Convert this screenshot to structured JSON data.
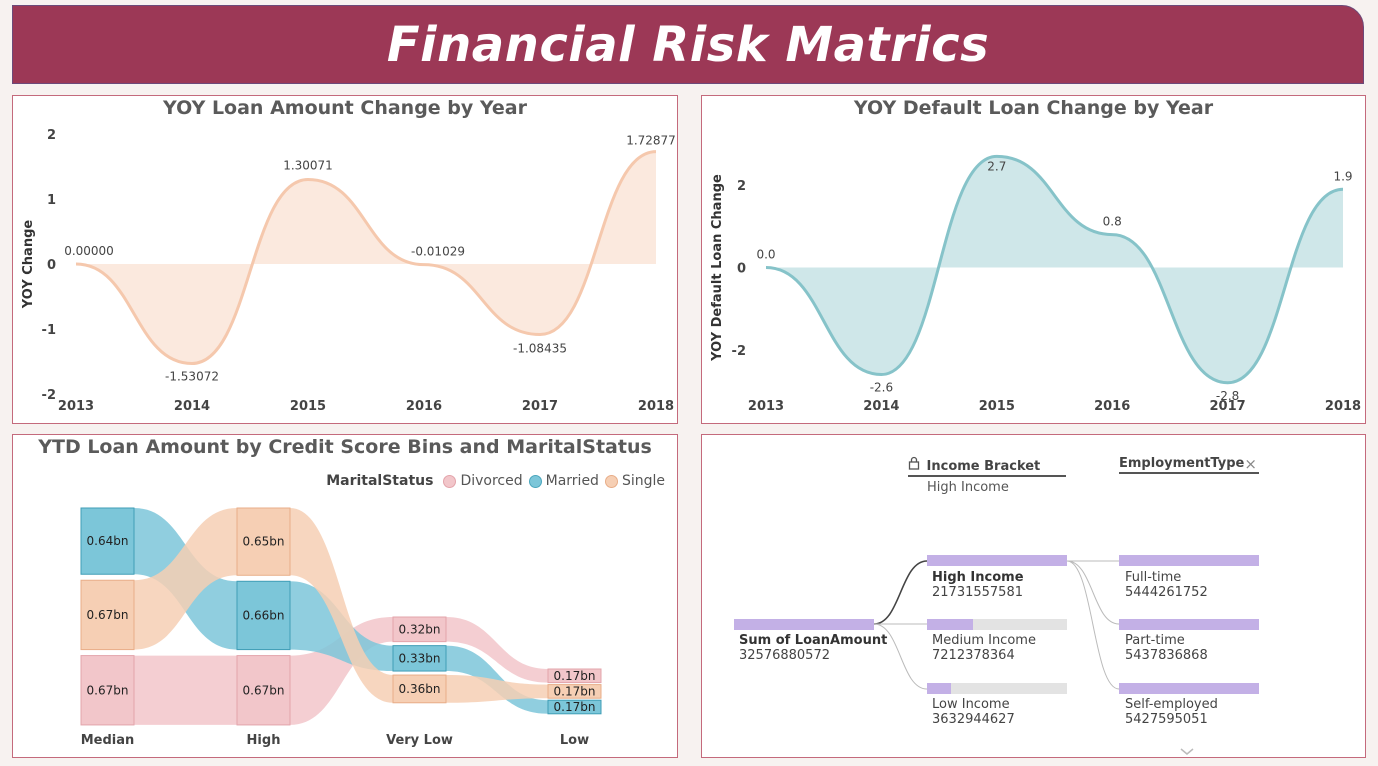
{
  "page": {
    "title": "Financial Risk Matrics"
  },
  "chart_data": [
    {
      "type": "area",
      "title": "YOY Loan Amount Change by Year",
      "ylabel": "YOY Change",
      "xlabel": "",
      "x": [
        "2013",
        "2014",
        "2015",
        "2016",
        "2017",
        "2018"
      ],
      "values": [
        0.0,
        -1.53072,
        1.30071,
        -0.01029,
        -1.08435,
        1.72877
      ],
      "data_labels": [
        "0.00000",
        "-1.53072",
        "1.30071",
        "-0.01029",
        "-1.08435",
        "1.72877"
      ],
      "yticks": [
        "-2",
        "-1",
        "0",
        "1",
        "2"
      ],
      "ylim": [
        -2,
        2
      ],
      "color": "#f5c8ad"
    },
    {
      "type": "area",
      "title": "YOY Default Loan Change by Year",
      "ylabel": "YOY Default Loan Change",
      "xlabel": "",
      "x": [
        "2013",
        "2014",
        "2015",
        "2016",
        "2017",
        "2018"
      ],
      "values": [
        0.0,
        -2.6,
        2.7,
        0.8,
        -2.8,
        1.9
      ],
      "data_labels": [
        "0.0",
        "-2.6",
        "2.7",
        "0.8",
        "-2.8",
        "1.9"
      ],
      "yticks": [
        "-2",
        "0",
        "2"
      ],
      "ylim": [
        -3,
        3
      ],
      "color": "#86c3c9"
    },
    {
      "type": "ribbon",
      "title": "YTD Loan Amount by Credit Score Bins and MaritalStatus",
      "legend_title": "MaritalStatus",
      "categories": [
        "Median",
        "High",
        "Very Low",
        "Low"
      ],
      "series": [
        {
          "name": "Divorced",
          "color": "#f2c6ca",
          "values": [
            0.67,
            0.67,
            0.32,
            0.17
          ],
          "labels": [
            "0.67bn",
            "0.67bn",
            "0.32bn",
            "0.17bn"
          ]
        },
        {
          "name": "Married",
          "color": "#7cc6d9",
          "values": [
            0.64,
            0.66,
            0.33,
            0.17
          ],
          "labels": [
            "0.64bn",
            "0.66bn",
            "0.33bn",
            "0.17bn"
          ]
        },
        {
          "name": "Single",
          "color": "#f6cfb4",
          "values": [
            0.67,
            0.65,
            0.36,
            0.17
          ],
          "labels": [
            "0.67bn",
            "0.65bn",
            "0.36bn",
            "0.17bn"
          ]
        }
      ],
      "rank_order": [
        [
          "Married",
          "Single",
          "Divorced"
        ],
        [
          "Single",
          "Married",
          "Divorced"
        ],
        [
          "Divorced",
          "Married",
          "Single"
        ],
        [
          "Divorced",
          "Single",
          "Married"
        ]
      ]
    }
  ],
  "decomp_tree": {
    "headers": [
      {
        "label": "Income Bracket",
        "locked": true,
        "sub": "High Income"
      },
      {
        "label": "EmploymentType",
        "closable": true
      }
    ],
    "root": {
      "label": "Sum of LoanAmount",
      "value": "32576880572",
      "fraction": 1.0
    },
    "level1": [
      {
        "label": "High Income",
        "value": "21731557581",
        "fraction": 1.0,
        "selected": true
      },
      {
        "label": "Medium Income",
        "value": "7212378364",
        "fraction": 0.33
      },
      {
        "label": "Low Income",
        "value": "3632944627",
        "fraction": 0.17
      }
    ],
    "level2": [
      {
        "label": "Full-time",
        "value": "5444261752",
        "fraction": 1.0
      },
      {
        "label": "Part-time",
        "value": "5437836868",
        "fraction": 1.0
      },
      {
        "label": "Self-employed",
        "value": "5427595051",
        "fraction": 1.0
      }
    ]
  }
}
